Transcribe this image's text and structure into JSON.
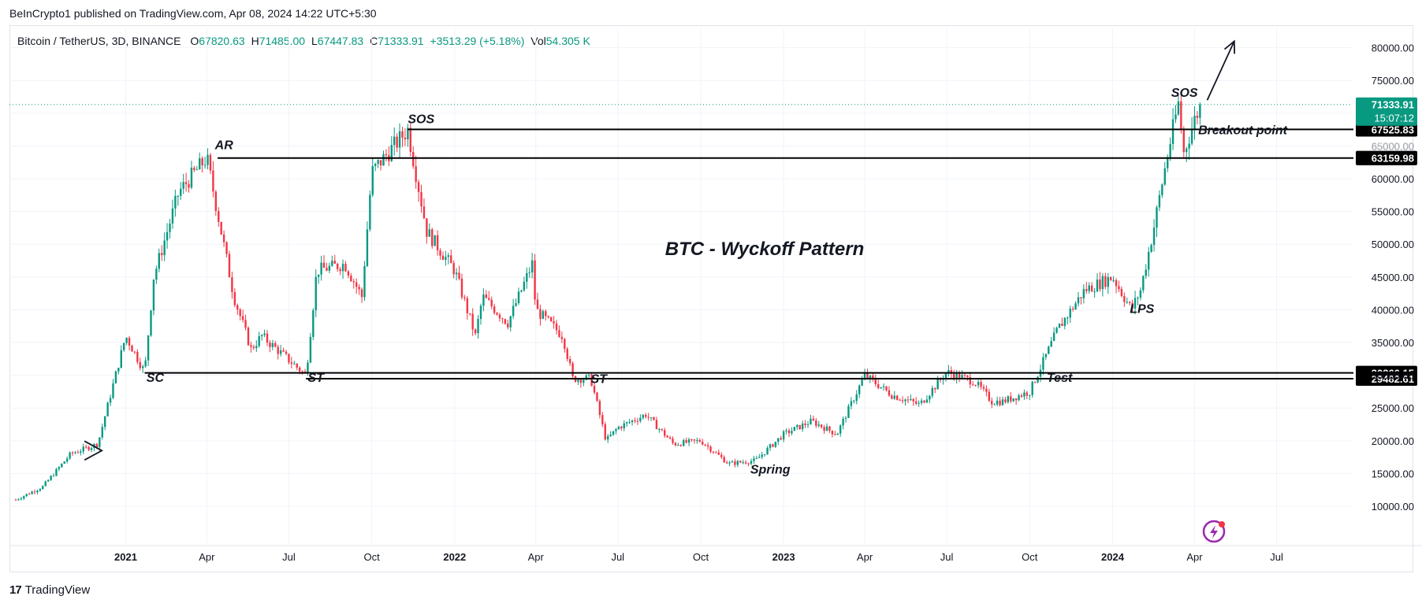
{
  "header": {
    "published": "BeInCrypto1 published on TradingView.com, Apr 08, 2024 14:22 UTC+5:30"
  },
  "legend": {
    "symbol": "Bitcoin / TetherUS, 3D, BINANCE",
    "o_label": "O",
    "o_value": "67820.63",
    "h_label": "H",
    "h_value": "71485.00",
    "l_label": "L",
    "l_value": "67447.83",
    "c_label": "C",
    "c_value": "71333.91",
    "change": "+3513.29 (+5.18%)",
    "vol_label": "Vol",
    "vol_value": "54.305 K"
  },
  "footer": {
    "brand": "TradingView",
    "logo_mark": "17"
  },
  "colors": {
    "up": "#089981",
    "down": "#f23645",
    "line": "#000000",
    "grid": "#f0f3fa",
    "last_price_bg": "#089981",
    "level_bg": "#000000"
  },
  "chart_data": {
    "type": "candlestick",
    "title": "BTC - Wyckoff Pattern",
    "ylim": [
      7000,
      82000
    ],
    "x_range": [
      "2020-09",
      "2024-08"
    ],
    "y_ticks": [
      10000,
      15000,
      20000,
      25000,
      30000,
      35000,
      40000,
      45000,
      50000,
      55000,
      60000,
      65000,
      70000,
      75000,
      80000
    ],
    "y_tick_labels": [
      "10000.00",
      "15000.00",
      "20000.00",
      "25000.00",
      "30000.00",
      "35000.00",
      "40000.00",
      "45000.00",
      "50000.00",
      "55000.00",
      "60000.00",
      "65000.00",
      "70000.00",
      "75000.00",
      "80000.00"
    ],
    "x_ticks": [
      {
        "date": "2021-01",
        "label": "2021",
        "bold": true
      },
      {
        "date": "2021-04",
        "label": "Apr"
      },
      {
        "date": "2021-07",
        "label": "Jul"
      },
      {
        "date": "2021-10",
        "label": "Oct"
      },
      {
        "date": "2022-01",
        "label": "2022",
        "bold": true
      },
      {
        "date": "2022-04",
        "label": "Apr"
      },
      {
        "date": "2022-07",
        "label": "Jul"
      },
      {
        "date": "2022-10",
        "label": "Oct"
      },
      {
        "date": "2023-01",
        "label": "2023",
        "bold": true
      },
      {
        "date": "2023-04",
        "label": "Apr"
      },
      {
        "date": "2023-07",
        "label": "Jul"
      },
      {
        "date": "2023-10",
        "label": "Oct"
      },
      {
        "date": "2024-01",
        "label": "2024",
        "bold": true
      },
      {
        "date": "2024-04",
        "label": "Apr"
      },
      {
        "date": "2024-07",
        "label": "Jul"
      }
    ],
    "price_path": [
      [
        "2020-09",
        11000
      ],
      [
        "2020-10",
        13000
      ],
      [
        "2020-11",
        18000
      ],
      [
        "2020-12",
        19500
      ],
      [
        "2021-01",
        36000
      ],
      [
        "2021-01-22",
        30500
      ],
      [
        "2021-02",
        45000
      ],
      [
        "2021-03",
        58000
      ],
      [
        "2021-04",
        63200
      ],
      [
        "2021-05",
        42000
      ],
      [
        "2021-05-20",
        34000
      ],
      [
        "2021-06",
        36000
      ],
      [
        "2021-07-20",
        30000
      ],
      [
        "2021-08",
        46000
      ],
      [
        "2021-09",
        47000
      ],
      [
        "2021-09-20",
        42000
      ],
      [
        "2021-10",
        61000
      ],
      [
        "2021-11-10",
        67500
      ],
      [
        "2021-12",
        52000
      ],
      [
        "2022-01",
        46000
      ],
      [
        "2022-01-24",
        36000
      ],
      [
        "2022-02",
        42000
      ],
      [
        "2022-03",
        38000
      ],
      [
        "2022-03-28",
        47000
      ],
      [
        "2022-04",
        40000
      ],
      [
        "2022-05",
        36000
      ],
      [
        "2022-05-12",
        29500
      ],
      [
        "2022-06",
        29500
      ],
      [
        "2022-06-18",
        20000
      ],
      [
        "2022-07",
        22000
      ],
      [
        "2022-08",
        24000
      ],
      [
        "2022-09",
        19500
      ],
      [
        "2022-10",
        20000
      ],
      [
        "2022-11",
        16500
      ],
      [
        "2022-12",
        17000
      ],
      [
        "2023-01",
        21000
      ],
      [
        "2023-02",
        23000
      ],
      [
        "2023-03",
        21000
      ],
      [
        "2023-04",
        30000
      ],
      [
        "2023-05",
        27000
      ],
      [
        "2023-06",
        25500
      ],
      [
        "2023-07",
        30500
      ],
      [
        "2023-08",
        29000
      ],
      [
        "2023-08-20",
        26000
      ],
      [
        "2023-09",
        26000
      ],
      [
        "2023-10",
        27500
      ],
      [
        "2023-10-24",
        34500
      ],
      [
        "2023-11",
        37000
      ],
      [
        "2023-12",
        43000
      ],
      [
        "2024-01",
        45000
      ],
      [
        "2024-01-22",
        40000
      ],
      [
        "2024-02",
        43000
      ],
      [
        "2024-02-15",
        52000
      ],
      [
        "2024-03",
        63000
      ],
      [
        "2024-03-14",
        71500
      ],
      [
        "2024-03-20",
        64000
      ],
      [
        "2024-04",
        69000
      ],
      [
        "2024-04-08",
        71333.91
      ]
    ],
    "levels": [
      {
        "name": "resistance-high",
        "value": 67525.83,
        "label": "67525.83",
        "from": "2021-11-10"
      },
      {
        "name": "resistance-ar",
        "value": 63159.98,
        "label": "63159.98",
        "from": "2021-04-13"
      },
      {
        "name": "support-high",
        "value": 30366.15,
        "label": "30366.15",
        "from": "2021-01-22"
      },
      {
        "name": "support-low",
        "value": 29482.61,
        "label": "29482.61",
        "from": "2021-07-20"
      }
    ],
    "last_price": {
      "value": 71333.91,
      "label": "71333.91",
      "countdown": "15:07:12"
    },
    "hidden_tick": {
      "value": 65000,
      "label": "65000.00"
    },
    "annotations": [
      {
        "text": "AR",
        "date": "2021-04-10",
        "price": 64500
      },
      {
        "text": "SOS",
        "date": "2021-11-10",
        "price": 68500
      },
      {
        "text": "SC",
        "date": "2021-01-24",
        "price": 29000
      },
      {
        "text": "ST",
        "date": "2021-07-22",
        "price": 29000
      },
      {
        "text": "ST",
        "date": "2022-06-01",
        "price": 28800
      },
      {
        "text": "Spring",
        "date": "2022-11-25",
        "price": 15000
      },
      {
        "text": "Test",
        "date": "2023-10-20",
        "price": 29000
      },
      {
        "text": "LPS",
        "date": "2024-01-20",
        "price": 39500
      },
      {
        "text": "SOS",
        "date": "2024-03-06",
        "price": 72500
      },
      {
        "text": "Breakout point",
        "date": "2024-04-05",
        "price": 66800
      }
    ],
    "arrow": {
      "from_date": "2024-04-08",
      "from_price": 72000,
      "to_date": "2024-05-15",
      "to_price": 81000
    }
  }
}
